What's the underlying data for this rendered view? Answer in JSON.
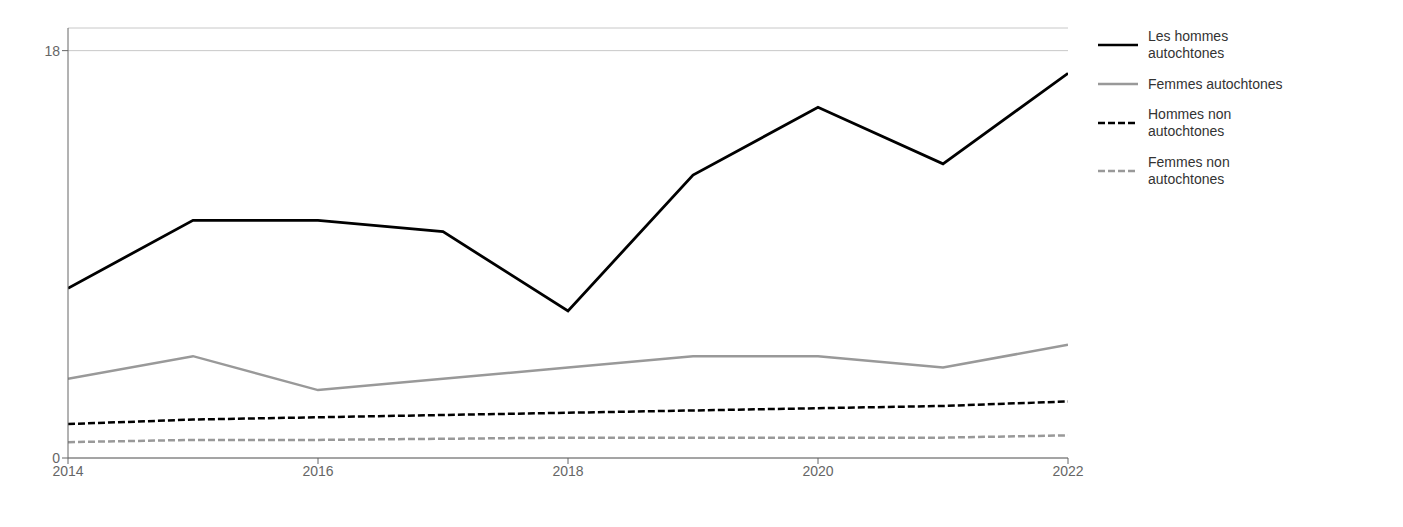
{
  "chart_data": {
    "type": "line",
    "x": [
      2014,
      2015,
      2016,
      2017,
      2018,
      2019,
      2020,
      2021,
      2022
    ],
    "series": [
      {
        "name": "Les hommes\nautochtones",
        "color": "#000000",
        "line_style": "solid",
        "values": [
          7.5,
          10.5,
          10.5,
          10.0,
          6.5,
          12.5,
          15.5,
          13.0,
          17.0
        ]
      },
      {
        "name": "Femmes autochtones",
        "color": "#999999",
        "line_style": "solid",
        "values": [
          3.5,
          4.5,
          3.0,
          3.5,
          4.0,
          4.5,
          4.5,
          4.0,
          5.0
        ]
      },
      {
        "name": "Hommes non\nautochtones",
        "color": "#000000",
        "line_style": "dashed",
        "values": [
          1.5,
          1.7,
          1.8,
          1.9,
          2.0,
          2.1,
          2.2,
          2.3,
          2.5
        ]
      },
      {
        "name": "Femmes non\nautochtones",
        "color": "#999999",
        "line_style": "dashed",
        "values": [
          0.7,
          0.8,
          0.8,
          0.85,
          0.9,
          0.9,
          0.9,
          0.9,
          1.0
        ]
      }
    ],
    "xlim": [
      2014,
      2022
    ],
    "xticks": [
      2014,
      2016,
      2018,
      2020,
      2022
    ],
    "ylim": [
      0,
      19
    ],
    "yticks": [
      0,
      18
    ],
    "grid": true,
    "legend": "right"
  }
}
